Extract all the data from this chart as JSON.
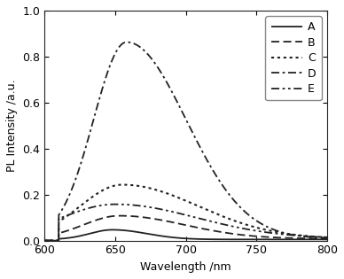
{
  "xlabel": "Wavelength /nm",
  "ylabel": "PL Intensity /a.u.",
  "xlim": [
    600,
    800
  ],
  "ylim": [
    0,
    1.0
  ],
  "xticks": [
    600,
    650,
    700,
    750,
    800
  ],
  "yticks": [
    0.0,
    0.2,
    0.4,
    0.6,
    0.8,
    1.0
  ],
  "series": [
    {
      "label": "A",
      "linestyle": "solid",
      "color": "#222222",
      "linewidth": 1.3,
      "peak_wl": 648,
      "peak_int": 0.042,
      "fwhm": 38,
      "skew": 1.5,
      "baseline": 0.005
    },
    {
      "label": "B",
      "linestyle": "dashed",
      "color": "#222222",
      "linewidth": 1.3,
      "peak_wl": 653,
      "peak_int": 0.1,
      "fwhm": 60,
      "skew": 1.8,
      "baseline": 0.008
    },
    {
      "label": "C",
      "linestyle": "dotted",
      "color": "#222222",
      "linewidth": 1.5,
      "peak_wl": 655,
      "peak_int": 0.235,
      "fwhm": 70,
      "skew": 1.8,
      "baseline": 0.008
    },
    {
      "label": "D",
      "linestyle": "dashdot",
      "color": "#222222",
      "linewidth": 1.3,
      "peak_wl": 658,
      "peak_int": 0.855,
      "fwhm": 55,
      "skew": 1.8,
      "baseline": 0.008
    },
    {
      "label": "E",
      "linestyle": "dashdotdot",
      "color": "#222222",
      "linewidth": 1.3,
      "peak_wl": 650,
      "peak_int": 0.148,
      "fwhm": 90,
      "skew": 1.5,
      "baseline": 0.01
    }
  ],
  "background_color": "#ffffff",
  "legend_loc": "upper right",
  "label_fontsize": 9,
  "tick_fontsize": 9
}
